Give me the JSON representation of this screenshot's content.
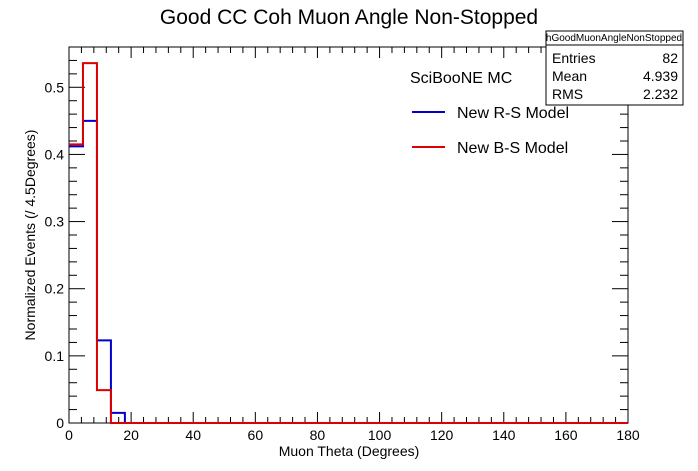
{
  "chart_data": {
    "type": "histogram",
    "title": "Good CC Coh Muon Angle Non-Stopped",
    "xlabel": "Muon Theta (Degrees)",
    "ylabel": "Normalized Events (/ 4.5Degrees)",
    "xlim": [
      0,
      180
    ],
    "ylim": [
      0,
      0.56
    ],
    "x_ticks": [
      0,
      20,
      40,
      60,
      80,
      100,
      120,
      140,
      160,
      180
    ],
    "y_ticks": [
      0,
      0.1,
      0.2,
      0.3,
      0.4,
      0.5
    ],
    "bin_width": 4.5,
    "bin_edges_start": 0,
    "series": [
      {
        "name": "New R-S Model",
        "color": "#0000cc",
        "values": [
          0.412,
          0.45,
          0.123,
          0.015,
          0,
          0,
          0,
          0,
          0,
          0,
          0,
          0,
          0,
          0,
          0,
          0,
          0,
          0,
          0,
          0,
          0,
          0,
          0,
          0,
          0,
          0,
          0,
          0,
          0,
          0,
          0,
          0,
          0,
          0,
          0,
          0,
          0,
          0,
          0,
          0
        ]
      },
      {
        "name": "New B-S Model",
        "color": "#dd0000",
        "values": [
          0.415,
          0.536,
          0.049,
          0,
          0,
          0,
          0,
          0,
          0,
          0,
          0,
          0,
          0,
          0,
          0,
          0,
          0,
          0,
          0,
          0,
          0,
          0,
          0,
          0,
          0,
          0,
          0,
          0,
          0,
          0,
          0,
          0,
          0,
          0,
          0,
          0,
          0,
          0,
          0,
          0
        ]
      }
    ],
    "legend_header": "SciBooNE MC",
    "legend_placement": "top-right",
    "stats_box": {
      "name": "hGoodMuonAngleNonStopped",
      "rows": [
        {
          "label": "Entries",
          "value": "82"
        },
        {
          "label": "Mean",
          "value": "4.939"
        },
        {
          "label": "RMS",
          "value": "2.232"
        }
      ]
    }
  }
}
